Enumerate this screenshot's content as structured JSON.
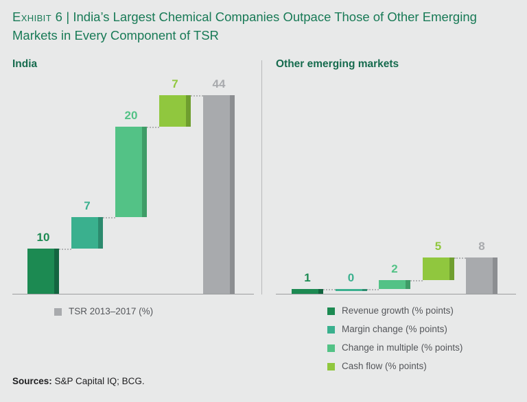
{
  "header": {
    "exhibit_label": "Exhibit 6",
    "separator": "|",
    "title": "India’s Largest Chemical Companies Outpace Those of Other Emerging Markets in Every Component of TSR"
  },
  "footer": {
    "sources_label": "Sources:",
    "sources_text": " S&P Capital IQ; BCG."
  },
  "colors": {
    "background": "#e8e9e9",
    "title_green": "#187a56",
    "heading_green": "#166b4e",
    "revenue_growth": "#1c8a52",
    "margin_change": "#3ab08e",
    "change_in_multiple": "#53c286",
    "cash_flow": "#90c73e",
    "total_gray": "#a8aaad",
    "legend_text": "#54565a",
    "axis_line": "#9b9d9f",
    "connector_dots": "#b0b2b3"
  },
  "chart_data": [
    {
      "type": "bar",
      "subtype": "waterfall",
      "panel_title": "India",
      "categories": [
        "Revenue growth",
        "Margin change",
        "Change in multiple",
        "Cash flow",
        "TSR 2013–2017"
      ],
      "values": [
        10,
        7,
        20,
        7
      ],
      "total": 44,
      "bar_labels": [
        "10",
        "7",
        "20",
        "7",
        "44"
      ],
      "bar_colors": [
        "#1c8a52",
        "#3ab08e",
        "#53c286",
        "#90c73e",
        "#a8aaad"
      ],
      "bar_side_colors": [
        "#136540",
        "#2c8a6e",
        "#3f9c67",
        "#6f9e2f",
        "#8c8e91"
      ],
      "ylim": [
        0,
        44
      ],
      "grid": false,
      "legend_position": "bottom",
      "legend": [
        {
          "label": "TSR 2013–2017 (%)",
          "color": "#a8aaad"
        }
      ]
    },
    {
      "type": "bar",
      "subtype": "waterfall",
      "panel_title": "Other emerging markets",
      "categories": [
        "Revenue growth",
        "Margin change",
        "Change in multiple",
        "Cash flow",
        "TSR 2013–2017"
      ],
      "values": [
        1,
        0,
        2,
        5
      ],
      "total": 8,
      "bar_labels": [
        "1",
        "0",
        "2",
        "5",
        "8"
      ],
      "bar_colors": [
        "#1c8a52",
        "#3ab08e",
        "#53c286",
        "#90c73e",
        "#a8aaad"
      ],
      "bar_side_colors": [
        "#136540",
        "#2c8a6e",
        "#3f9c67",
        "#6f9e2f",
        "#8c8e91"
      ],
      "ylim": [
        0,
        44
      ],
      "grid": false,
      "legend_position": "bottom",
      "legend": [
        {
          "label": "Revenue growth (% points)",
          "color": "#1c8a52"
        },
        {
          "label": "Margin change (% points)",
          "color": "#3ab08e"
        },
        {
          "label": "Change in multiple (% points)",
          "color": "#53c286"
        },
        {
          "label": "Cash flow (% points)",
          "color": "#90c73e"
        }
      ]
    }
  ]
}
